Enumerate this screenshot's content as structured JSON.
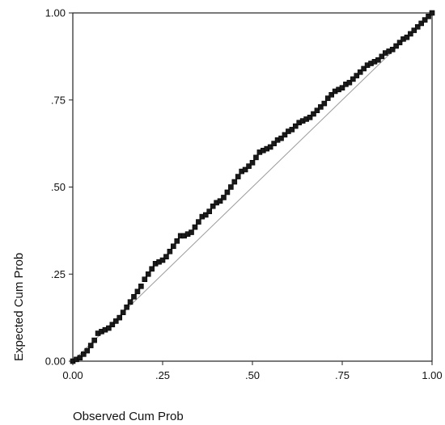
{
  "chart_data": {
    "type": "scatter",
    "title": "",
    "xlabel": "Observed Cum Prob",
    "ylabel": "Expected Cum Prob",
    "xlim": [
      0,
      1
    ],
    "ylim": [
      0,
      1
    ],
    "xticks": [
      0,
      0.25,
      0.5,
      0.75,
      1
    ],
    "xtick_labels": [
      "0.00",
      ".25",
      ".50",
      ".75",
      "1.00"
    ],
    "yticks": [
      0,
      0.25,
      0.5,
      0.75,
      1
    ],
    "ytick_labels": [
      "0.00",
      ".25",
      ".50",
      ".75",
      "1.00"
    ],
    "grid": false,
    "legend": "none",
    "marker_color": "#1a1a1a",
    "points": [
      [
        0.0,
        0.0
      ],
      [
        0.01,
        0.005
      ],
      [
        0.02,
        0.01
      ],
      [
        0.03,
        0.02
      ],
      [
        0.04,
        0.03
      ],
      [
        0.05,
        0.045
      ],
      [
        0.06,
        0.06
      ],
      [
        0.07,
        0.08
      ],
      [
        0.08,
        0.085
      ],
      [
        0.09,
        0.09
      ],
      [
        0.1,
        0.095
      ],
      [
        0.11,
        0.105
      ],
      [
        0.12,
        0.115
      ],
      [
        0.13,
        0.125
      ],
      [
        0.14,
        0.14
      ],
      [
        0.15,
        0.155
      ],
      [
        0.16,
        0.17
      ],
      [
        0.17,
        0.185
      ],
      [
        0.18,
        0.2
      ],
      [
        0.19,
        0.215
      ],
      [
        0.2,
        0.235
      ],
      [
        0.21,
        0.25
      ],
      [
        0.22,
        0.265
      ],
      [
        0.23,
        0.28
      ],
      [
        0.24,
        0.285
      ],
      [
        0.25,
        0.29
      ],
      [
        0.26,
        0.3
      ],
      [
        0.27,
        0.315
      ],
      [
        0.28,
        0.33
      ],
      [
        0.29,
        0.345
      ],
      [
        0.3,
        0.36
      ],
      [
        0.31,
        0.36
      ],
      [
        0.32,
        0.365
      ],
      [
        0.33,
        0.37
      ],
      [
        0.34,
        0.385
      ],
      [
        0.35,
        0.4
      ],
      [
        0.36,
        0.415
      ],
      [
        0.37,
        0.42
      ],
      [
        0.38,
        0.43
      ],
      [
        0.39,
        0.445
      ],
      [
        0.4,
        0.455
      ],
      [
        0.41,
        0.46
      ],
      [
        0.42,
        0.47
      ],
      [
        0.43,
        0.485
      ],
      [
        0.44,
        0.5
      ],
      [
        0.45,
        0.515
      ],
      [
        0.46,
        0.53
      ],
      [
        0.47,
        0.545
      ],
      [
        0.48,
        0.55
      ],
      [
        0.49,
        0.56
      ],
      [
        0.5,
        0.57
      ],
      [
        0.51,
        0.585
      ],
      [
        0.52,
        0.6
      ],
      [
        0.53,
        0.605
      ],
      [
        0.54,
        0.61
      ],
      [
        0.55,
        0.615
      ],
      [
        0.56,
        0.625
      ],
      [
        0.57,
        0.635
      ],
      [
        0.58,
        0.64
      ],
      [
        0.59,
        0.65
      ],
      [
        0.6,
        0.66
      ],
      [
        0.61,
        0.665
      ],
      [
        0.62,
        0.675
      ],
      [
        0.63,
        0.685
      ],
      [
        0.64,
        0.69
      ],
      [
        0.65,
        0.695
      ],
      [
        0.66,
        0.7
      ],
      [
        0.67,
        0.71
      ],
      [
        0.68,
        0.72
      ],
      [
        0.69,
        0.73
      ],
      [
        0.7,
        0.74
      ],
      [
        0.71,
        0.755
      ],
      [
        0.72,
        0.765
      ],
      [
        0.73,
        0.775
      ],
      [
        0.74,
        0.78
      ],
      [
        0.75,
        0.785
      ],
      [
        0.76,
        0.795
      ],
      [
        0.77,
        0.8
      ],
      [
        0.78,
        0.81
      ],
      [
        0.79,
        0.82
      ],
      [
        0.8,
        0.83
      ],
      [
        0.81,
        0.84
      ],
      [
        0.82,
        0.85
      ],
      [
        0.83,
        0.855
      ],
      [
        0.84,
        0.86
      ],
      [
        0.85,
        0.865
      ],
      [
        0.86,
        0.875
      ],
      [
        0.87,
        0.885
      ],
      [
        0.88,
        0.89
      ],
      [
        0.89,
        0.895
      ],
      [
        0.9,
        0.905
      ],
      [
        0.91,
        0.915
      ],
      [
        0.92,
        0.925
      ],
      [
        0.93,
        0.93
      ],
      [
        0.94,
        0.94
      ],
      [
        0.95,
        0.95
      ],
      [
        0.96,
        0.96
      ],
      [
        0.97,
        0.97
      ],
      [
        0.98,
        0.98
      ],
      [
        0.99,
        0.99
      ],
      [
        1.0,
        1.0
      ]
    ]
  }
}
